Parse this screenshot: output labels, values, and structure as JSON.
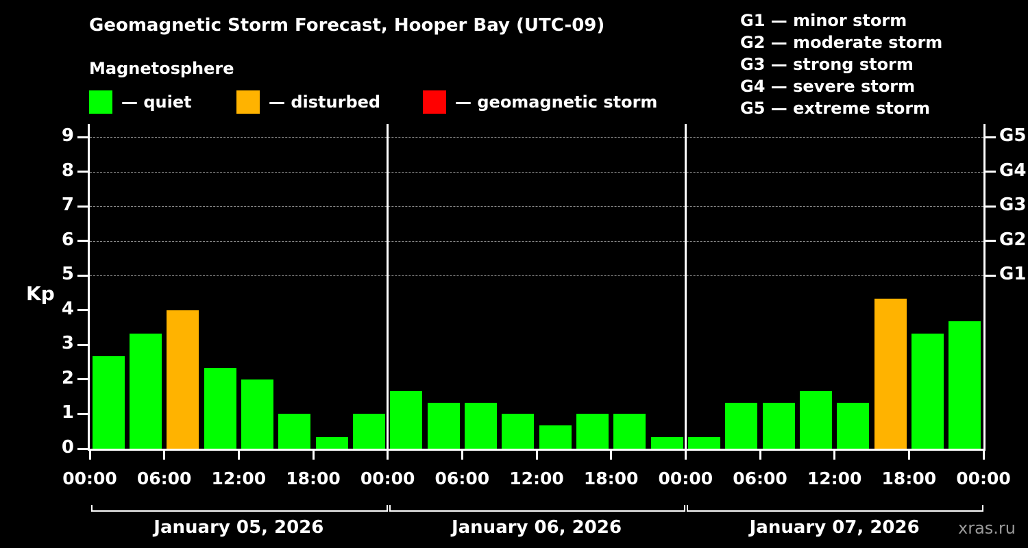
{
  "title": "Geomagnetic Storm Forecast, Hooper Bay (UTC-09)",
  "subtitle": "Magnetosphere",
  "legend": {
    "items": [
      {
        "label": "— quiet",
        "color": "#00ff00"
      },
      {
        "label": "— disturbed",
        "color": "#ffb300"
      },
      {
        "label": "— geomagnetic storm",
        "color": "#ff0000"
      }
    ]
  },
  "g_legend": [
    "G1 — minor storm",
    "G2 — moderate storm",
    "G3 — strong storm",
    "G4 — severe storm",
    "G5 — extreme storm"
  ],
  "axes": {
    "kp_label": "Kp",
    "y_ticks": [
      "0",
      "1",
      "2",
      "3",
      "4",
      "5",
      "6",
      "7",
      "8",
      "9"
    ],
    "right_labels": [
      "G1",
      "G2",
      "G3",
      "G4",
      "G5"
    ],
    "x_tick_labels": [
      "00:00",
      "06:00",
      "12:00",
      "18:00",
      "00:00",
      "06:00",
      "12:00",
      "18:00",
      "00:00",
      "06:00",
      "12:00",
      "18:00",
      "00:00"
    ]
  },
  "watermark": "xras.ru",
  "chart_data": {
    "type": "bar",
    "title": "Geomagnetic Storm Forecast, Hooper Bay (UTC-09)",
    "ylabel": "Kp",
    "ylim": [
      0,
      9.4
    ],
    "bar_interval_hours": 3,
    "grid": "dashed horizontal at Kp 5-9",
    "gridline_levels": [
      5,
      6,
      7,
      8,
      9
    ],
    "g_scale_kp": {
      "G1": 5,
      "G2": 6,
      "G3": 7,
      "G4": 8,
      "G5": 9
    },
    "status_colors": {
      "quiet": "#00ff00",
      "disturbed": "#ffb300",
      "storm": "#ff0000"
    },
    "days": [
      {
        "date": "January 05, 2026",
        "values": [
          2.67,
          3.33,
          4.0,
          2.33,
          2.0,
          1.0,
          0.33,
          1.0
        ],
        "statuses": [
          "quiet",
          "quiet",
          "disturbed",
          "quiet",
          "quiet",
          "quiet",
          "quiet",
          "quiet"
        ]
      },
      {
        "date": "January 06, 2026",
        "values": [
          1.67,
          1.33,
          1.33,
          1.0,
          0.67,
          1.0,
          1.0,
          0.33
        ],
        "statuses": [
          "quiet",
          "quiet",
          "quiet",
          "quiet",
          "quiet",
          "quiet",
          "quiet",
          "quiet"
        ]
      },
      {
        "date": "January 07, 2026",
        "values": [
          0.33,
          1.33,
          1.33,
          1.67,
          1.33,
          4.33,
          3.33,
          3.67
        ],
        "statuses": [
          "quiet",
          "quiet",
          "quiet",
          "quiet",
          "quiet",
          "disturbed",
          "quiet",
          "quiet"
        ]
      }
    ]
  }
}
